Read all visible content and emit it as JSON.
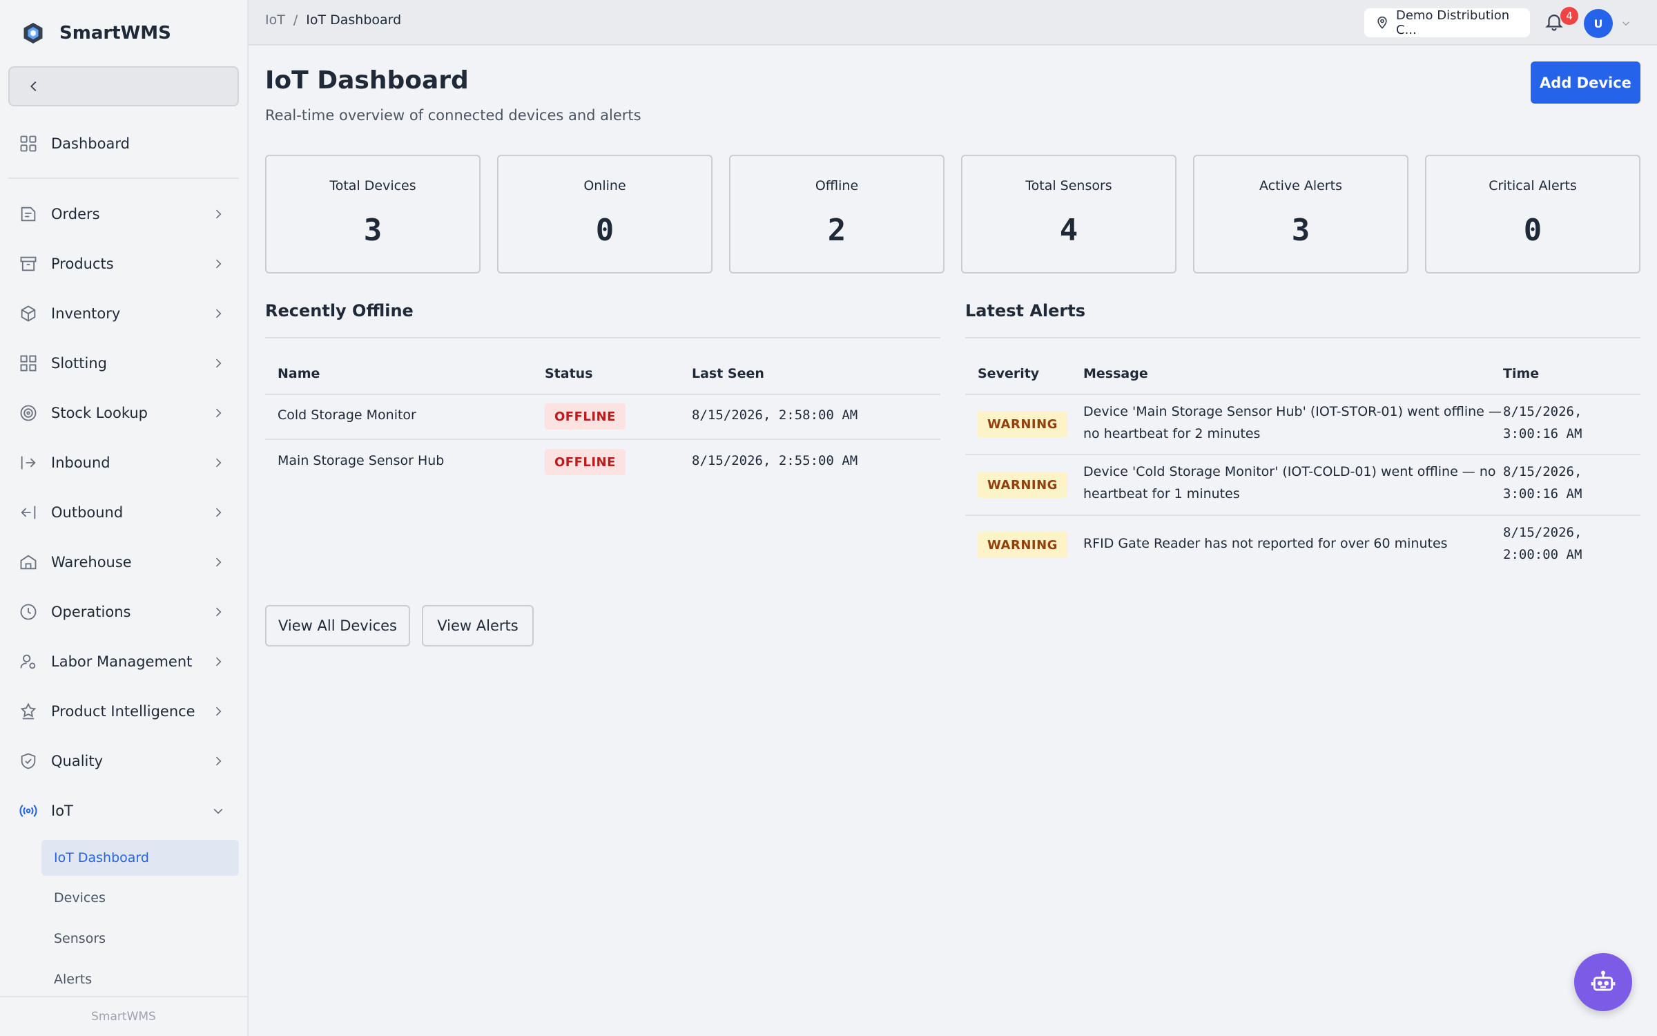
{
  "brand": {
    "name": "SmartWMS",
    "footer": "SmartWMS"
  },
  "colors": {
    "accent": "#2563eb",
    "offline": "#b91c1c",
    "warning": "#92400e",
    "fab": "#7c5ce6",
    "badge": "#ef4444"
  },
  "sidebar": {
    "dashboard": {
      "label": "Dashboard",
      "icon": "grid-icon"
    },
    "items": [
      {
        "label": "Orders",
        "icon": "clipboard-icon"
      },
      {
        "label": "Products",
        "icon": "archive-icon"
      },
      {
        "label": "Inventory",
        "icon": "cube-icon"
      },
      {
        "label": "Slotting",
        "icon": "grid-icon"
      },
      {
        "label": "Stock Lookup",
        "icon": "target-icon"
      },
      {
        "label": "Inbound",
        "icon": "login-icon"
      },
      {
        "label": "Outbound",
        "icon": "logout-icon"
      },
      {
        "label": "Warehouse",
        "icon": "home-icon"
      },
      {
        "label": "Operations",
        "icon": "clock-icon"
      },
      {
        "label": "Labor Management",
        "icon": "user-cog-icon"
      },
      {
        "label": "Product Intelligence",
        "icon": "award-icon"
      },
      {
        "label": "Quality",
        "icon": "shield-check-icon"
      },
      {
        "label": "IoT",
        "icon": "broadcast-icon"
      }
    ],
    "iot_sub": [
      {
        "label": "IoT Dashboard"
      },
      {
        "label": "Devices"
      },
      {
        "label": "Sensors"
      },
      {
        "label": "Alerts"
      }
    ]
  },
  "topbar": {
    "breadcrumb": [
      "IoT",
      "/",
      "IoT Dashboard"
    ],
    "location": "Demo Distribution C...",
    "notifications": "4",
    "avatar": "U"
  },
  "page": {
    "title": "IoT Dashboard",
    "subtitle": "Real-time overview of connected devices and alerts",
    "add_button": "Add Device"
  },
  "stats": [
    {
      "label": "Total Devices",
      "value": "3"
    },
    {
      "label": "Online",
      "value": "0"
    },
    {
      "label": "Offline",
      "value": "2"
    },
    {
      "label": "Total Sensors",
      "value": "4"
    },
    {
      "label": "Active Alerts",
      "value": "3"
    },
    {
      "label": "Critical Alerts",
      "value": "0"
    }
  ],
  "recently_offline": {
    "title": "Recently Offline",
    "headers": [
      "Name",
      "Status",
      "Last Seen"
    ],
    "rows": [
      {
        "name": "Cold Storage Monitor",
        "status": "OFFLINE",
        "last_seen": "8/15/2026, 2:58:00 AM"
      },
      {
        "name": "Main Storage Sensor Hub",
        "status": "OFFLINE",
        "last_seen": "8/15/2026, 2:55:00 AM"
      }
    ]
  },
  "latest_alerts": {
    "title": "Latest Alerts",
    "headers": [
      "Severity",
      "Message",
      "Time"
    ],
    "rows": [
      {
        "severity": "WARNING",
        "message_1": "Device 'Main Storage Sensor Hub' (IOT-STOR-01) went offline —",
        "message_2": "no heartbeat for 2 minutes",
        "time_1": "8/15/2026,",
        "time_2": "3:00:16 AM"
      },
      {
        "severity": "WARNING",
        "message_1": "Device 'Cold Storage Monitor' (IOT-COLD-01) went offline — no",
        "message_2": "heartbeat for 1 minutes",
        "time_1": "8/15/2026,",
        "time_2": "3:00:16 AM"
      },
      {
        "severity": "WARNING",
        "message_1": "RFID Gate Reader has not reported for over 60 minutes",
        "message_2": "",
        "time_1": "8/15/2026,",
        "time_2": "2:00:00 AM"
      }
    ]
  },
  "actions": {
    "view_devices": "View All Devices",
    "view_alerts": "View Alerts"
  },
  "fab": {
    "icon": "robot-icon"
  }
}
